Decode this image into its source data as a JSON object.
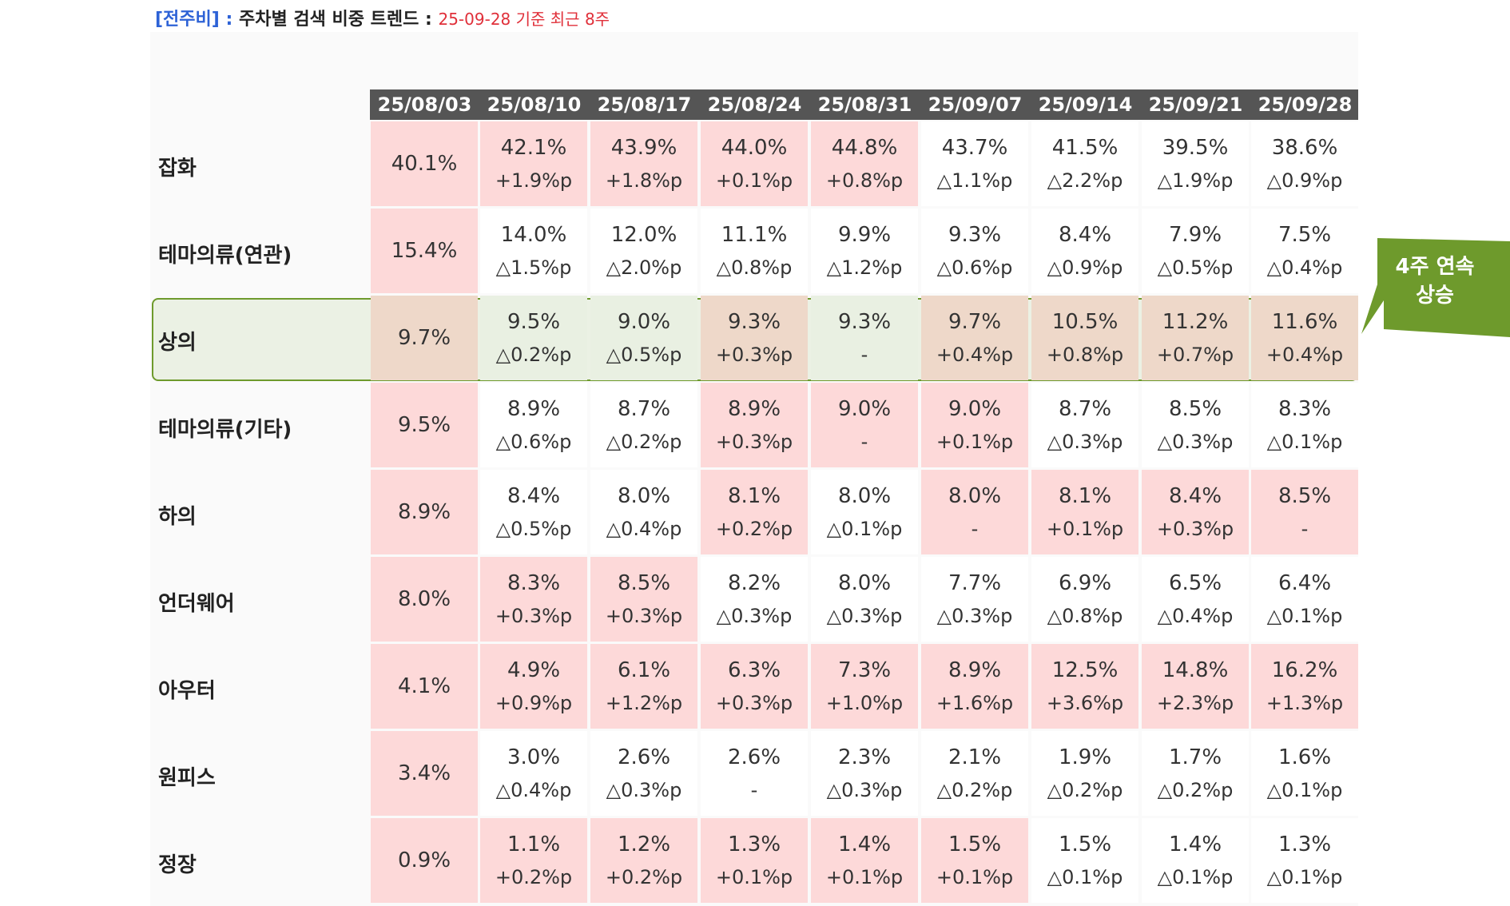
{
  "header": {
    "tag": "[전주비]",
    "colon": " : ",
    "main": "주차별 검색 비중 트렌드",
    "colon2": " : ",
    "sub": "25-09-28 기준 최근 8주"
  },
  "dates": [
    "25/08/03",
    "25/08/10",
    "25/08/17",
    "25/08/24",
    "25/08/31",
    "25/09/07",
    "25/09/14",
    "25/09/21",
    "25/09/28"
  ],
  "rows": [
    {
      "label": "잡화",
      "cells": [
        {
          "v": "40.1%",
          "d": "",
          "bg": "pink"
        },
        {
          "v": "42.1%",
          "d": "+1.9%p",
          "bg": "pink"
        },
        {
          "v": "43.9%",
          "d": "+1.8%p",
          "bg": "pink"
        },
        {
          "v": "44.0%",
          "d": "+0.1%p",
          "bg": "pink"
        },
        {
          "v": "44.8%",
          "d": "+0.8%p",
          "bg": "pink"
        },
        {
          "v": "43.7%",
          "d": "△1.1%p",
          "bg": "white"
        },
        {
          "v": "41.5%",
          "d": "△2.2%p",
          "bg": "white"
        },
        {
          "v": "39.5%",
          "d": "△1.9%p",
          "bg": "white"
        },
        {
          "v": "38.6%",
          "d": "△0.9%p",
          "bg": "white"
        }
      ]
    },
    {
      "label": "테마의류(연관)",
      "cells": [
        {
          "v": "15.4%",
          "d": "",
          "bg": "pink"
        },
        {
          "v": "14.0%",
          "d": "△1.5%p",
          "bg": "white"
        },
        {
          "v": "12.0%",
          "d": "△2.0%p",
          "bg": "white"
        },
        {
          "v": "11.1%",
          "d": "△0.8%p",
          "bg": "white"
        },
        {
          "v": "9.9%",
          "d": "△1.2%p",
          "bg": "white"
        },
        {
          "v": "9.3%",
          "d": "△0.6%p",
          "bg": "white"
        },
        {
          "v": "8.4%",
          "d": "△0.9%p",
          "bg": "white"
        },
        {
          "v": "7.9%",
          "d": "△0.5%p",
          "bg": "white"
        },
        {
          "v": "7.5%",
          "d": "△0.4%p",
          "bg": "white"
        }
      ]
    },
    {
      "label": "상의",
      "highlight": true,
      "cells": [
        {
          "v": "9.7%",
          "d": "",
          "bg": "tan"
        },
        {
          "v": "9.5%",
          "d": "△0.2%p",
          "bg": "green"
        },
        {
          "v": "9.0%",
          "d": "△0.5%p",
          "bg": "green"
        },
        {
          "v": "9.3%",
          "d": "+0.3%p",
          "bg": "tan"
        },
        {
          "v": "9.3%",
          "d": "-",
          "bg": "green"
        },
        {
          "v": "9.7%",
          "d": "+0.4%p",
          "bg": "tan"
        },
        {
          "v": "10.5%",
          "d": "+0.8%p",
          "bg": "tan"
        },
        {
          "v": "11.2%",
          "d": "+0.7%p",
          "bg": "tan"
        },
        {
          "v": "11.6%",
          "d": "+0.4%p",
          "bg": "tan"
        }
      ]
    },
    {
      "label": "테마의류(기타)",
      "cells": [
        {
          "v": "9.5%",
          "d": "",
          "bg": "pink"
        },
        {
          "v": "8.9%",
          "d": "△0.6%p",
          "bg": "white"
        },
        {
          "v": "8.7%",
          "d": "△0.2%p",
          "bg": "white"
        },
        {
          "v": "8.9%",
          "d": "+0.3%p",
          "bg": "pink"
        },
        {
          "v": "9.0%",
          "d": "-",
          "bg": "pink"
        },
        {
          "v": "9.0%",
          "d": "+0.1%p",
          "bg": "pink"
        },
        {
          "v": "8.7%",
          "d": "△0.3%p",
          "bg": "white"
        },
        {
          "v": "8.5%",
          "d": "△0.3%p",
          "bg": "white"
        },
        {
          "v": "8.3%",
          "d": "△0.1%p",
          "bg": "white"
        }
      ]
    },
    {
      "label": "하의",
      "cells": [
        {
          "v": "8.9%",
          "d": "",
          "bg": "pink"
        },
        {
          "v": "8.4%",
          "d": "△0.5%p",
          "bg": "white"
        },
        {
          "v": "8.0%",
          "d": "△0.4%p",
          "bg": "white"
        },
        {
          "v": "8.1%",
          "d": "+0.2%p",
          "bg": "pink"
        },
        {
          "v": "8.0%",
          "d": "△0.1%p",
          "bg": "white"
        },
        {
          "v": "8.0%",
          "d": "-",
          "bg": "pink"
        },
        {
          "v": "8.1%",
          "d": "+0.1%p",
          "bg": "pink"
        },
        {
          "v": "8.4%",
          "d": "+0.3%p",
          "bg": "pink"
        },
        {
          "v": "8.5%",
          "d": "-",
          "bg": "pink"
        }
      ]
    },
    {
      "label": "언더웨어",
      "cells": [
        {
          "v": "8.0%",
          "d": "",
          "bg": "pink"
        },
        {
          "v": "8.3%",
          "d": "+0.3%p",
          "bg": "pink"
        },
        {
          "v": "8.5%",
          "d": "+0.3%p",
          "bg": "pink"
        },
        {
          "v": "8.2%",
          "d": "△0.3%p",
          "bg": "white"
        },
        {
          "v": "8.0%",
          "d": "△0.3%p",
          "bg": "white"
        },
        {
          "v": "7.7%",
          "d": "△0.3%p",
          "bg": "white"
        },
        {
          "v": "6.9%",
          "d": "△0.8%p",
          "bg": "white"
        },
        {
          "v": "6.5%",
          "d": "△0.4%p",
          "bg": "white"
        },
        {
          "v": "6.4%",
          "d": "△0.1%p",
          "bg": "white"
        }
      ]
    },
    {
      "label": "아우터",
      "cells": [
        {
          "v": "4.1%",
          "d": "",
          "bg": "pink"
        },
        {
          "v": "4.9%",
          "d": "+0.9%p",
          "bg": "pink"
        },
        {
          "v": "6.1%",
          "d": "+1.2%p",
          "bg": "pink"
        },
        {
          "v": "6.3%",
          "d": "+0.3%p",
          "bg": "pink"
        },
        {
          "v": "7.3%",
          "d": "+1.0%p",
          "bg": "pink"
        },
        {
          "v": "8.9%",
          "d": "+1.6%p",
          "bg": "pink"
        },
        {
          "v": "12.5%",
          "d": "+3.6%p",
          "bg": "pink"
        },
        {
          "v": "14.8%",
          "d": "+2.3%p",
          "bg": "pink"
        },
        {
          "v": "16.2%",
          "d": "+1.3%p",
          "bg": "pink"
        }
      ]
    },
    {
      "label": "원피스",
      "cells": [
        {
          "v": "3.4%",
          "d": "",
          "bg": "pink"
        },
        {
          "v": "3.0%",
          "d": "△0.4%p",
          "bg": "white"
        },
        {
          "v": "2.6%",
          "d": "△0.3%p",
          "bg": "white"
        },
        {
          "v": "2.6%",
          "d": "-",
          "bg": "white"
        },
        {
          "v": "2.3%",
          "d": "△0.3%p",
          "bg": "white"
        },
        {
          "v": "2.1%",
          "d": "△0.2%p",
          "bg": "white"
        },
        {
          "v": "1.9%",
          "d": "△0.2%p",
          "bg": "white"
        },
        {
          "v": "1.7%",
          "d": "△0.2%p",
          "bg": "white"
        },
        {
          "v": "1.6%",
          "d": "△0.1%p",
          "bg": "white"
        }
      ]
    },
    {
      "label": "정장",
      "cells": [
        {
          "v": "0.9%",
          "d": "",
          "bg": "pink"
        },
        {
          "v": "1.1%",
          "d": "+0.2%p",
          "bg": "pink"
        },
        {
          "v": "1.2%",
          "d": "+0.2%p",
          "bg": "pink"
        },
        {
          "v": "1.3%",
          "d": "+0.1%p",
          "bg": "pink"
        },
        {
          "v": "1.4%",
          "d": "+0.1%p",
          "bg": "pink"
        },
        {
          "v": "1.5%",
          "d": "+0.1%p",
          "bg": "pink"
        },
        {
          "v": "1.5%",
          "d": "△0.1%p",
          "bg": "white"
        },
        {
          "v": "1.4%",
          "d": "△0.1%p",
          "bg": "white"
        },
        {
          "v": "1.3%",
          "d": "△0.1%p",
          "bg": "white"
        }
      ]
    }
  ],
  "callout": {
    "line1": "4주 연속",
    "line2": "상승",
    "color": "#6e9a2c"
  },
  "colors": {
    "pink": "#fdd9d9",
    "tan": "#eed8c9",
    "green": "#e9f0e2",
    "header_bar": "#555555",
    "title_blue": "#2d62d6",
    "subtitle_red": "#e0303a"
  }
}
